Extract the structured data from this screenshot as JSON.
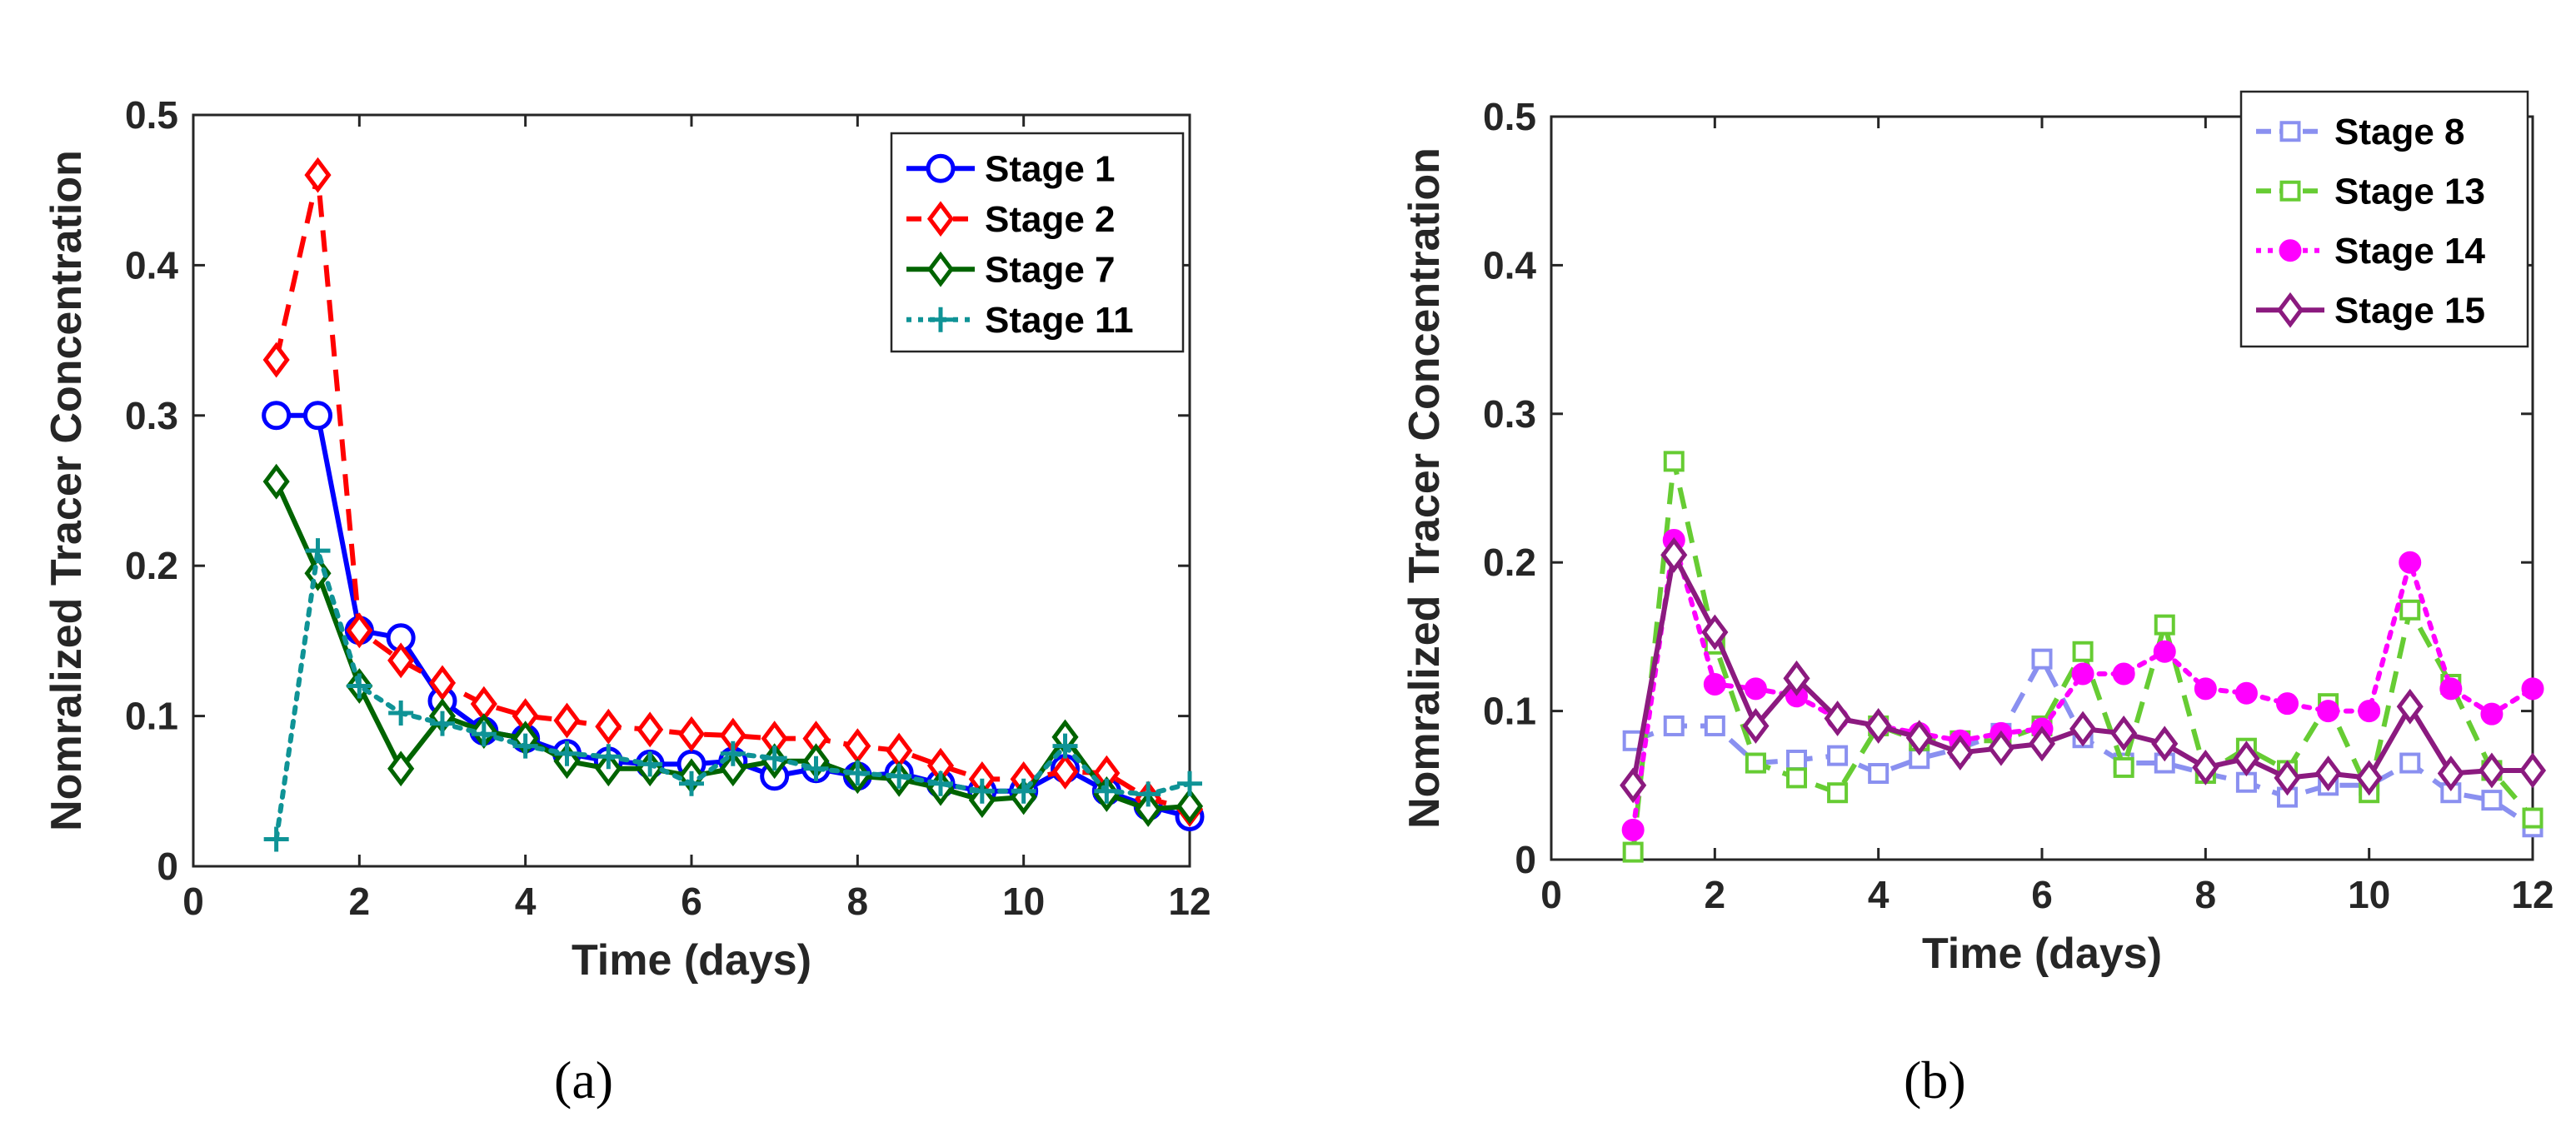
{
  "chart_data": [
    {
      "type": "line",
      "panel_label": "(a)",
      "title": "",
      "xlabel": "Time (days)",
      "ylabel": "Nomralized Tracer Concentration",
      "xlim": [
        0,
        12
      ],
      "ylim": [
        0,
        0.5
      ],
      "xticks": [
        "0",
        "2",
        "4",
        "6",
        "8",
        "10",
        "12"
      ],
      "yticks": [
        "0",
        "0.1",
        "0.2",
        "0.3",
        "0.4",
        "0.5"
      ],
      "grid": false,
      "legend_position": "top-right",
      "x": [
        1,
        1.5,
        2,
        2.5,
        3,
        3.5,
        4,
        4.5,
        5,
        5.5,
        6,
        6.5,
        7,
        7.5,
        8,
        8.5,
        9,
        9.5,
        10,
        10.5,
        11,
        11.5,
        12
      ],
      "series": [
        {
          "name": "Stage 1",
          "color": "#0000ff",
          "line": "solid",
          "marker": "circle",
          "values": [
            0.3,
            0.3,
            0.157,
            0.152,
            0.11,
            0.09,
            0.085,
            0.075,
            0.07,
            0.068,
            0.068,
            0.07,
            0.06,
            0.065,
            0.06,
            0.062,
            0.055,
            0.05,
            0.05,
            0.065,
            0.05,
            0.04,
            0.033
          ]
        },
        {
          "name": "Stage 2",
          "color": "#ff0000",
          "line": "dashed",
          "marker": "diamond",
          "values": [
            0.337,
            0.46,
            0.157,
            0.137,
            0.122,
            0.108,
            0.1,
            0.097,
            0.093,
            0.091,
            0.088,
            0.087,
            0.085,
            0.085,
            0.08,
            0.077,
            0.067,
            0.058,
            0.058,
            0.063,
            0.062,
            0.045,
            0.038
          ]
        },
        {
          "name": "Stage 7",
          "color": "#006400",
          "line": "solid",
          "marker": "diamond",
          "values": [
            0.256,
            0.195,
            0.12,
            0.065,
            0.1,
            0.09,
            0.085,
            0.07,
            0.065,
            0.065,
            0.06,
            0.065,
            0.07,
            0.07,
            0.06,
            0.058,
            0.052,
            0.044,
            0.046,
            0.086,
            0.048,
            0.038,
            0.04
          ]
        },
        {
          "name": "Stage 11",
          "color": "#0f9396",
          "line": "dotted",
          "marker": "plus",
          "values": [
            0.018,
            0.21,
            0.12,
            0.102,
            0.095,
            0.088,
            0.08,
            0.075,
            0.073,
            0.068,
            0.055,
            0.075,
            0.072,
            0.065,
            0.062,
            0.06,
            0.055,
            0.05,
            0.05,
            0.08,
            0.05,
            0.048,
            0.055
          ]
        }
      ]
    },
    {
      "type": "line",
      "panel_label": "(b)",
      "title": "",
      "xlabel": "Time (days)",
      "ylabel": "Nomralized Tracer Concentration",
      "xlim": [
        0,
        12
      ],
      "ylim": [
        0,
        0.5
      ],
      "xticks": [
        "0",
        "2",
        "4",
        "6",
        "8",
        "10",
        "12"
      ],
      "yticks": [
        "0",
        "0.1",
        "0.2",
        "0.3",
        "0.4",
        "0.5"
      ],
      "grid": false,
      "legend_position": "top-right",
      "x": [
        1,
        1.5,
        2,
        2.5,
        3,
        3.5,
        4,
        4.5,
        5,
        5.5,
        6,
        6.5,
        7,
        7.5,
        8,
        8.5,
        9,
        9.5,
        10,
        10.5,
        11,
        11.5,
        12
      ],
      "series": [
        {
          "name": "Stage 8",
          "color": "#8a90f0",
          "line": "dashed",
          "marker": "square",
          "values": [
            0.08,
            0.09,
            0.09,
            0.065,
            0.067,
            0.07,
            0.058,
            0.068,
            0.075,
            0.085,
            0.135,
            0.082,
            0.065,
            0.065,
            0.058,
            0.052,
            0.042,
            0.05,
            0.05,
            0.065,
            0.045,
            0.04,
            0.022
          ]
        },
        {
          "name": "Stage 13",
          "color": "#66cc33",
          "line": "dashed",
          "marker": "square",
          "values": [
            0.005,
            0.268,
            0.145,
            0.065,
            0.055,
            0.045,
            0.09,
            0.08,
            0.08,
            0.08,
            0.09,
            0.14,
            0.062,
            0.158,
            0.058,
            0.075,
            0.06,
            0.105,
            0.045,
            0.168,
            0.118,
            0.06,
            0.028
          ]
        },
        {
          "name": "Stage 14",
          "color": "#ff00ff",
          "line": "dotted",
          "marker": "filled-circle",
          "values": [
            0.02,
            0.215,
            0.118,
            0.115,
            0.11,
            0.095,
            0.09,
            0.085,
            0.08,
            0.085,
            0.088,
            0.125,
            0.125,
            0.14,
            0.115,
            0.112,
            0.105,
            0.1,
            0.1,
            0.2,
            0.115,
            0.098,
            0.115
          ]
        },
        {
          "name": "Stage 15",
          "color": "#8b1a7f",
          "line": "solid",
          "marker": "diamond",
          "values": [
            0.05,
            0.205,
            0.153,
            0.09,
            0.122,
            0.095,
            0.09,
            0.082,
            0.072,
            0.075,
            0.078,
            0.088,
            0.085,
            0.078,
            0.062,
            0.068,
            0.055,
            0.058,
            0.055,
            0.103,
            0.058,
            0.06,
            0.06
          ]
        }
      ]
    }
  ]
}
